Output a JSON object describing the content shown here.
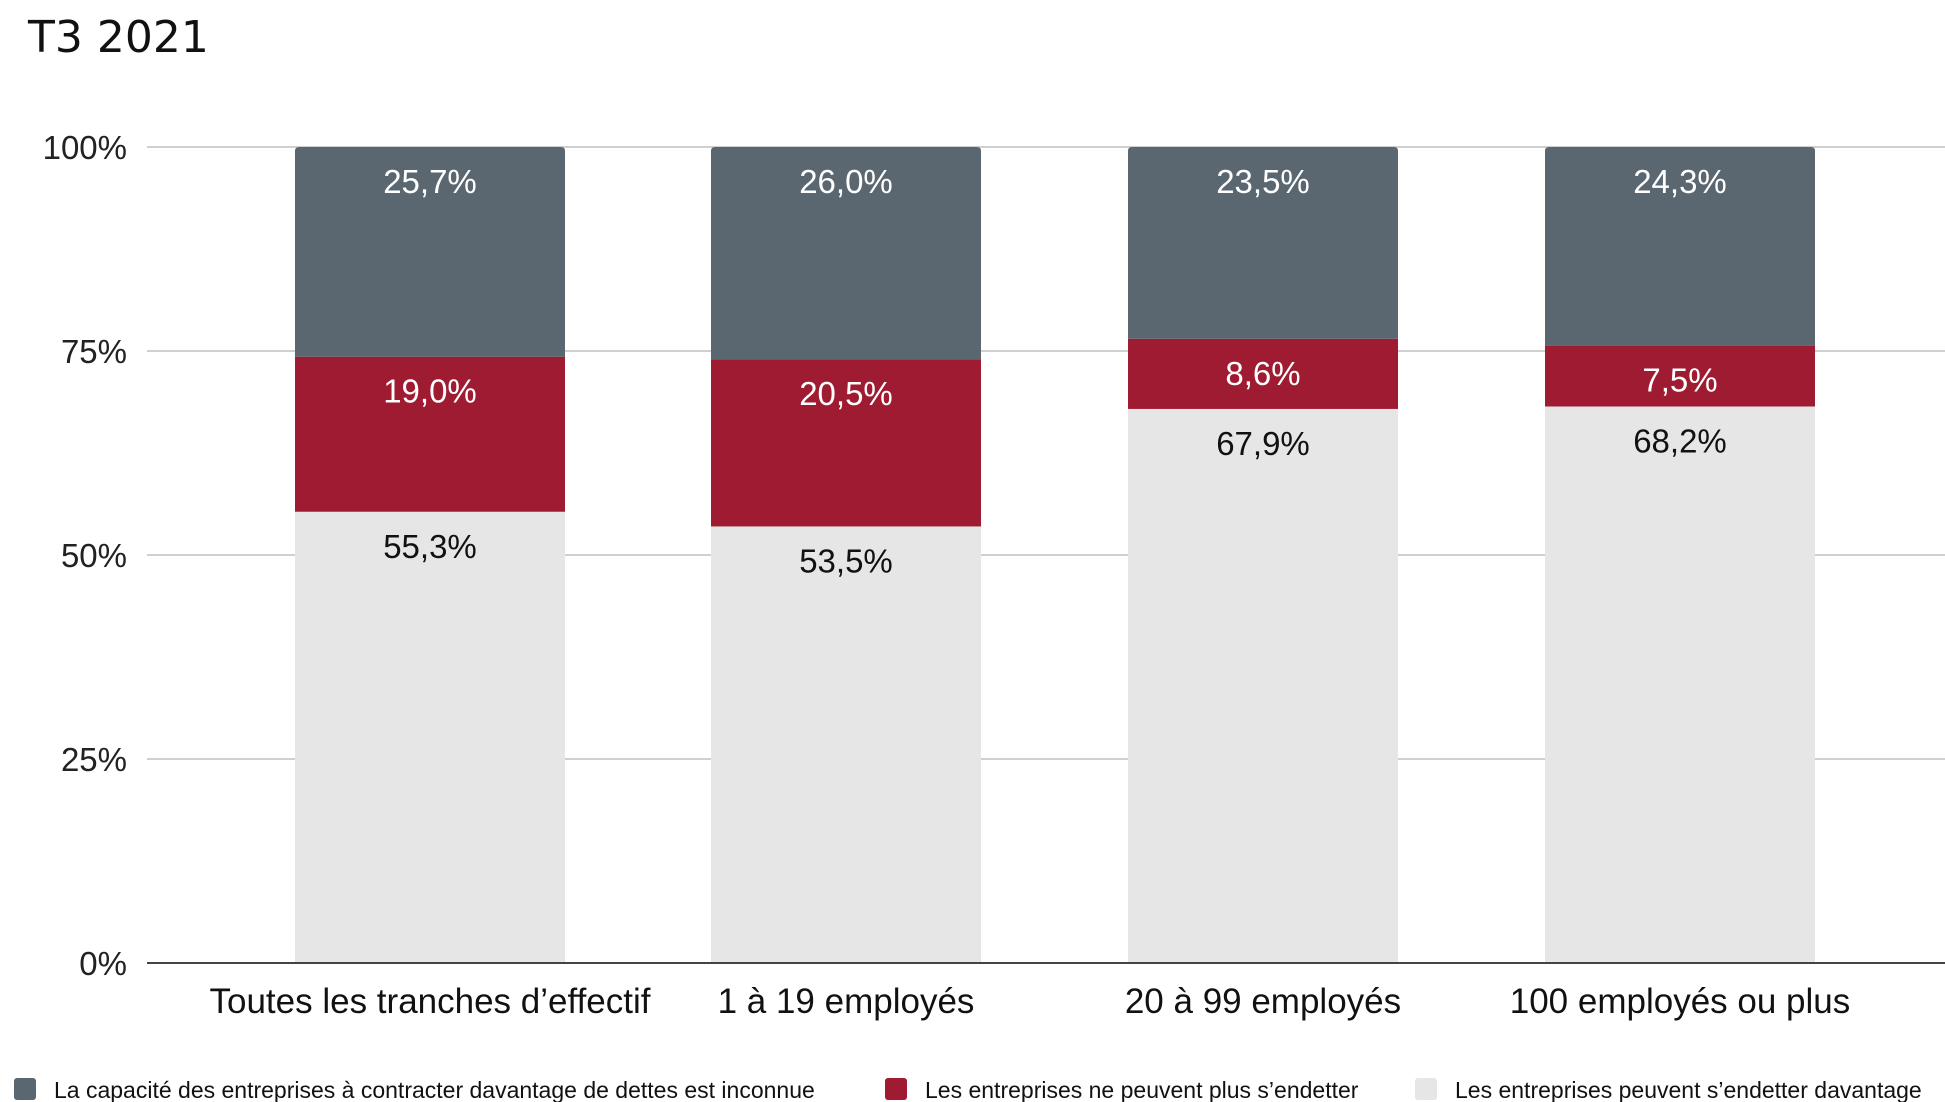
{
  "title": "T3 2021",
  "chart_data": {
    "type": "bar",
    "stacked": true,
    "title": "T3 2021",
    "categories": [
      "Toutes les tranches d’effectif",
      "1 à 19 employés",
      "20 à 99 employés",
      "100 employés ou plus"
    ],
    "series": [
      {
        "name": "Les entreprises peuvent s’endetter davantage",
        "color": "#e6e6e6",
        "label_color": "#111111",
        "values": [
          55.3,
          53.5,
          67.9,
          68.2
        ],
        "labels": [
          "55,3%",
          "53,5%",
          "67,9%",
          "68,2%"
        ]
      },
      {
        "name": "Les entreprises ne peuvent plus s’endetter",
        "color": "#9e1b32",
        "label_color": "#ffffff",
        "values": [
          19.0,
          20.5,
          8.6,
          7.5
        ],
        "labels": [
          "19,0%",
          "20,5%",
          "8,6%",
          "7,5%"
        ]
      },
      {
        "name": "La capacité des entreprises à contracter davantage de dettes est inconnue",
        "color": "#5b6770",
        "label_color": "#ffffff",
        "values": [
          25.7,
          26.0,
          23.5,
          24.3
        ],
        "labels": [
          "25,7%",
          "26,0%",
          "23,5%",
          "24,3%"
        ]
      }
    ],
    "y_ticks": [
      {
        "value": 0,
        "label": "0%"
      },
      {
        "value": 25,
        "label": "25%"
      },
      {
        "value": 50,
        "label": "50%"
      },
      {
        "value": 75,
        "label": "75%"
      },
      {
        "value": 100,
        "label": "100%"
      }
    ],
    "ylim": [
      0,
      100
    ],
    "grid": true,
    "legend_position": "bottom",
    "legend_order": [
      2,
      1,
      0
    ]
  }
}
